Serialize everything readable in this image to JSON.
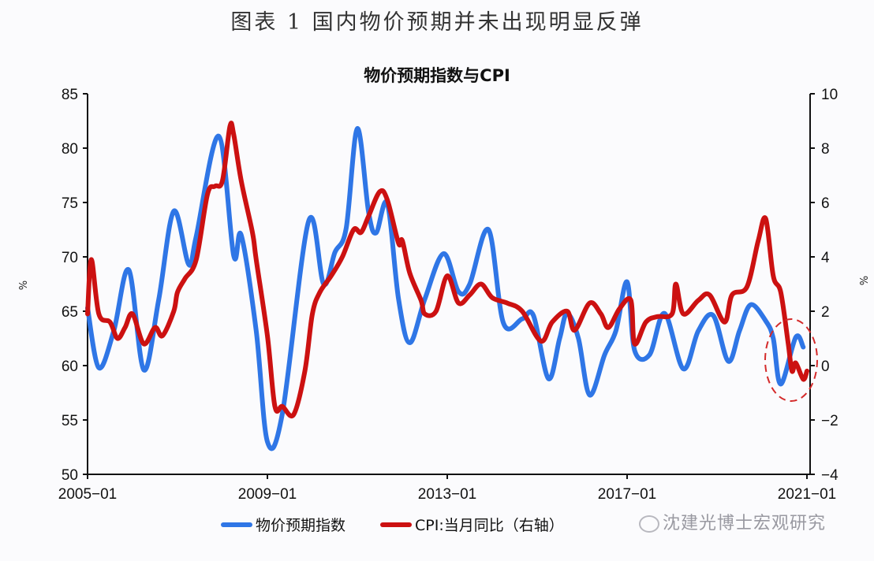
{
  "figure_caption": "图表 1 国内物价预期并未出现明显反弹",
  "watermark": "沈建光博士宏观研究",
  "chart_data": {
    "type": "line",
    "title": "物价预期指数与CPI",
    "xlabel": "",
    "ylabel_left": "%",
    "ylabel_right": "%",
    "x_start": "2005-01",
    "x_ticks": [
      "2005-01",
      "2009-01",
      "2013-01",
      "2017-01",
      "2021-01"
    ],
    "x_tick_months": [
      0,
      48,
      96,
      144,
      192
    ],
    "y_left": {
      "ticks": [
        50,
        55,
        60,
        65,
        70,
        75,
        80,
        85
      ],
      "ylim": [
        50,
        85
      ]
    },
    "y_right": {
      "ticks": [
        -4,
        -2,
        0,
        2,
        4,
        6,
        8,
        10
      ],
      "ylim": [
        -4,
        10
      ]
    },
    "grid": false,
    "legend_position": "bottom",
    "annotation": "red dashed ellipse highlighting late-2020 values",
    "series": [
      {
        "name": "物价预期指数",
        "axis": "left",
        "color": "#2f76e6",
        "points": [
          [
            0,
            65.3
          ],
          [
            3,
            59.8
          ],
          [
            7,
            63.2
          ],
          [
            11,
            68.8
          ],
          [
            15,
            59.6
          ],
          [
            19,
            66.1
          ],
          [
            23,
            74.2
          ],
          [
            27,
            69.3
          ],
          [
            29,
            71.9
          ],
          [
            35,
            81.1
          ],
          [
            39,
            70.1
          ],
          [
            41,
            72.0
          ],
          [
            45,
            63.2
          ],
          [
            48,
            53.0
          ],
          [
            52,
            55.6
          ],
          [
            59,
            73.3
          ],
          [
            63,
            67.5
          ],
          [
            66,
            70.4
          ],
          [
            69,
            72.6
          ],
          [
            72,
            81.8
          ],
          [
            75,
            74.1
          ],
          [
            77,
            72.2
          ],
          [
            80,
            74.9
          ],
          [
            83,
            66.1
          ],
          [
            86,
            62.1
          ],
          [
            90,
            66.1
          ],
          [
            95,
            70.3
          ],
          [
            99,
            66.8
          ],
          [
            102,
            67.5
          ],
          [
            107,
            72.5
          ],
          [
            111,
            63.9
          ],
          [
            116,
            64.3
          ],
          [
            119,
            64.6
          ],
          [
            123,
            58.8
          ],
          [
            126,
            62.5
          ],
          [
            128,
            64.8
          ],
          [
            131,
            62.5
          ],
          [
            134,
            57.3
          ],
          [
            138,
            61.0
          ],
          [
            141,
            63.2
          ],
          [
            144,
            67.7
          ],
          [
            146,
            61.4
          ],
          [
            150,
            61.0
          ],
          [
            154,
            64.8
          ],
          [
            159,
            59.7
          ],
          [
            163,
            63.2
          ],
          [
            167,
            64.6
          ],
          [
            171,
            60.4
          ],
          [
            174,
            63.2
          ],
          [
            177,
            65.6
          ],
          [
            181,
            64.1
          ],
          [
            183,
            62.5
          ],
          [
            185,
            58.3
          ],
          [
            189,
            62.6
          ],
          [
            191,
            61.7
          ]
        ]
      },
      {
        "name": "CPI:当月同比（右轴）",
        "axis": "right",
        "color": "#cc1111",
        "points": [
          [
            0,
            1.9
          ],
          [
            1,
            3.9
          ],
          [
            3,
            1.9
          ],
          [
            6,
            1.6
          ],
          [
            8,
            1.0
          ],
          [
            10,
            1.4
          ],
          [
            12,
            1.9
          ],
          [
            15,
            0.8
          ],
          [
            18,
            1.4
          ],
          [
            20,
            1.1
          ],
          [
            23,
            2.0
          ],
          [
            24,
            2.7
          ],
          [
            26,
            3.2
          ],
          [
            29,
            3.9
          ],
          [
            32,
            6.3
          ],
          [
            34,
            6.6
          ],
          [
            36,
            6.8
          ],
          [
            38,
            8.8
          ],
          [
            39,
            8.5
          ],
          [
            41,
            6.8
          ],
          [
            44,
            4.9
          ],
          [
            45,
            3.9
          ],
          [
            48,
            1.1
          ],
          [
            50,
            -1.5
          ],
          [
            52,
            -1.5
          ],
          [
            55,
            -1.8
          ],
          [
            58,
            -0.2
          ],
          [
            60,
            1.9
          ],
          [
            62,
            2.7
          ],
          [
            65,
            3.3
          ],
          [
            68,
            4.0
          ],
          [
            71,
            5.0
          ],
          [
            73,
            4.9
          ],
          [
            75,
            5.5
          ],
          [
            78,
            6.4
          ],
          [
            80,
            6.1
          ],
          [
            83,
            4.5
          ],
          [
            84,
            4.6
          ],
          [
            86,
            3.4
          ],
          [
            89,
            2.4
          ],
          [
            90,
            1.9
          ],
          [
            93,
            2.0
          ],
          [
            96,
            3.3
          ],
          [
            99,
            2.3
          ],
          [
            102,
            2.6
          ],
          [
            105,
            3.0
          ],
          [
            108,
            2.5
          ],
          [
            112,
            2.3
          ],
          [
            116,
            2.0
          ],
          [
            121,
            0.9
          ],
          [
            124,
            1.6
          ],
          [
            128,
            2.0
          ],
          [
            130,
            1.3
          ],
          [
            134,
            2.3
          ],
          [
            137,
            1.9
          ],
          [
            139,
            1.4
          ],
          [
            142,
            2.1
          ],
          [
            145,
            2.4
          ],
          [
            146,
            0.8
          ],
          [
            149,
            1.6
          ],
          [
            152,
            1.8
          ],
          [
            156,
            1.9
          ],
          [
            157,
            3.0
          ],
          [
            159,
            1.9
          ],
          [
            163,
            2.4
          ],
          [
            166,
            2.6
          ],
          [
            170,
            1.6
          ],
          [
            172,
            2.6
          ],
          [
            176,
            2.9
          ],
          [
            179,
            4.6
          ],
          [
            181,
            5.4
          ],
          [
            183,
            3.3
          ],
          [
            185,
            2.7
          ],
          [
            187,
            0.8
          ],
          [
            188,
            -0.2
          ],
          [
            189,
            0.1
          ],
          [
            191,
            -0.5
          ],
          [
            192,
            -0.2
          ]
        ]
      }
    ]
  },
  "legend": {
    "items": [
      {
        "label": "物价预期指数",
        "color": "#2f76e6"
      },
      {
        "label": "CPI:当月同比（右轴）",
        "color": "#cc1111"
      }
    ]
  }
}
